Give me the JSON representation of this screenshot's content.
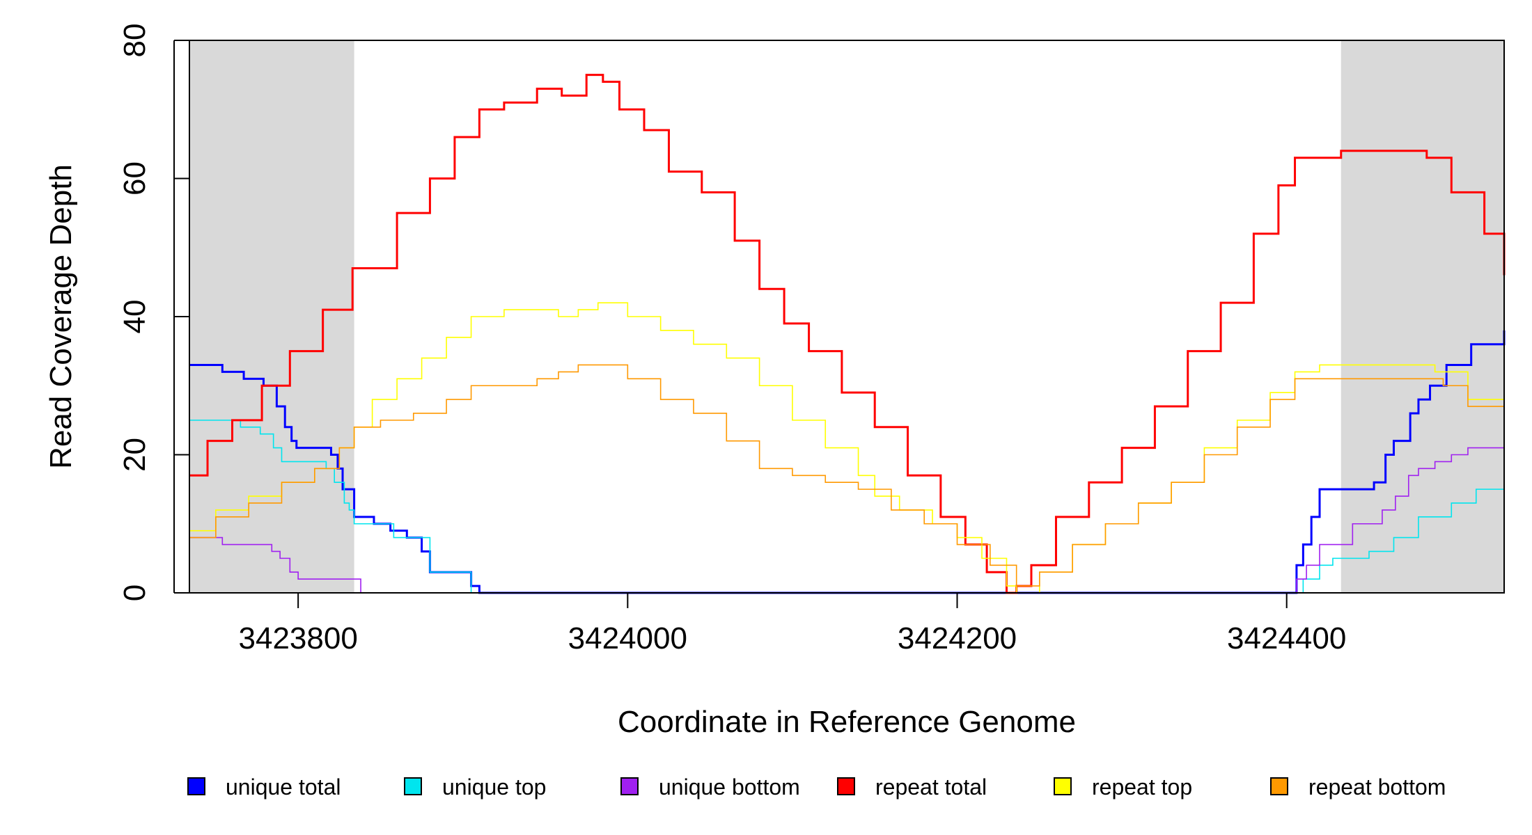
{
  "chart_data": {
    "type": "line",
    "title": "",
    "xlabel": "Coordinate in Reference Genome",
    "ylabel": "Read Coverage Depth",
    "xlim": [
      3423734,
      3424532
    ],
    "ylim": [
      0,
      80
    ],
    "x_ticks": [
      3423800,
      3424000,
      3424200,
      3424400
    ],
    "y_ticks": [
      0,
      20,
      40,
      60,
      80
    ],
    "x_tick_labels": [
      "3423800",
      "3424000",
      "3424200",
      "3424400"
    ],
    "y_tick_labels": [
      "0",
      "20",
      "40",
      "60",
      "80"
    ],
    "shaded_regions": [
      [
        3423734,
        3423834
      ],
      [
        3424433,
        3424532
      ]
    ],
    "shade_color": "#d9d9d9",
    "legend_position": "bottom",
    "series": [
      {
        "name": "unique total",
        "color": "#0000ff",
        "width": 3,
        "x": [
          3423734,
          3423754,
          3423767,
          3423779,
          3423787,
          3423792,
          3423796,
          3423799,
          3423803,
          3423808,
          3423820,
          3423824,
          3423827,
          3423832,
          3423834,
          3423846,
          3423856,
          3423866,
          3423875,
          3423880,
          3423905,
          3423910,
          3424403,
          3424406,
          3424410,
          3424415,
          3424420,
          3424436,
          3424453,
          3424460,
          3424465,
          3424475,
          3424480,
          3424487,
          3424497,
          3424512,
          3424532
        ],
        "y": [
          33,
          32,
          31,
          30,
          27,
          24,
          22,
          21,
          21,
          21,
          20,
          18,
          15,
          15,
          11,
          10,
          9,
          8,
          6,
          3,
          1,
          0,
          0,
          4,
          7,
          11,
          15,
          15,
          16,
          20,
          22,
          26,
          28,
          30,
          33,
          36,
          38
        ]
      },
      {
        "name": "unique top",
        "color": "#00e5ee",
        "width": 1.6,
        "x": [
          3423734,
          3423765,
          3423777,
          3423785,
          3423790,
          3423795,
          3423810,
          3423817,
          3423822,
          3423828,
          3423831,
          3423834,
          3423838,
          3423858,
          3423880,
          3423905,
          3424403,
          3424410,
          3424420,
          3424428,
          3424450,
          3424465,
          3424480,
          3424500,
          3424515,
          3424532
        ],
        "y": [
          25,
          24,
          23,
          21,
          19,
          19,
          19,
          18,
          16,
          13,
          12,
          10,
          10,
          8,
          3,
          0,
          0,
          2,
          4,
          5,
          6,
          8,
          11,
          13,
          15,
          16
        ]
      },
      {
        "name": "unique bottom",
        "color": "#a020f0",
        "width": 1.6,
        "x": [
          3423734,
          3423754,
          3423784,
          3423789,
          3423795,
          3423800,
          3423834,
          3423838,
          3424403,
          3424406,
          3424412,
          3424420,
          3424440,
          3424458,
          3424466,
          3424474,
          3424480,
          3424490,
          3424500,
          3424510,
          3424532
        ],
        "y": [
          8,
          7,
          6,
          5,
          3,
          2,
          2,
          0,
          0,
          2,
          4,
          7,
          10,
          12,
          14,
          17,
          18,
          19,
          20,
          21,
          21
        ]
      },
      {
        "name": "repeat total",
        "color": "#ff0000",
        "width": 3,
        "x": [
          3423734,
          3423745,
          3423760,
          3423778,
          3423795,
          3423815,
          3423833,
          3423860,
          3423880,
          3423895,
          3423910,
          3423925,
          3423945,
          3423960,
          3423975,
          3423985,
          3423995,
          3424010,
          3424025,
          3424045,
          3424065,
          3424080,
          3424095,
          3424110,
          3424130,
          3424150,
          3424170,
          3424190,
          3424205,
          3424218,
          3424230,
          3424236,
          3424245,
          3424260,
          3424280,
          3424300,
          3424320,
          3424340,
          3424360,
          3424380,
          3424395,
          3424405,
          3424420,
          3424433,
          3424450,
          3424470,
          3424485,
          3424500,
          3424520,
          3424532
        ],
        "y": [
          17,
          22,
          25,
          30,
          35,
          41,
          47,
          55,
          60,
          66,
          70,
          71,
          73,
          72,
          75,
          74,
          70,
          67,
          61,
          58,
          51,
          44,
          39,
          35,
          29,
          24,
          17,
          11,
          7,
          3,
          0,
          1,
          4,
          11,
          16,
          21,
          27,
          35,
          42,
          52,
          59,
          63,
          63,
          64,
          64,
          64,
          63,
          58,
          52,
          46
        ]
      },
      {
        "name": "repeat top",
        "color": "#ffff00",
        "width": 1.6,
        "x": [
          3423734,
          3423750,
          3423770,
          3423790,
          3423810,
          3423825,
          3423834,
          3423845,
          3423860,
          3423875,
          3423890,
          3423905,
          3423925,
          3423945,
          3423958,
          3423970,
          3423982,
          3424000,
          3424020,
          3424040,
          3424060,
          3424080,
          3424100,
          3424120,
          3424140,
          3424150,
          3424165,
          3424185,
          3424200,
          3424215,
          3424230,
          3424236,
          3424250,
          3424270,
          3424290,
          3424310,
          3424330,
          3424350,
          3424370,
          3424390,
          3424405,
          3424420,
          3424433,
          3424455,
          3424475,
          3424490,
          3424510,
          3424532
        ],
        "y": [
          9,
          12,
          14,
          16,
          18,
          21,
          24,
          28,
          31,
          34,
          37,
          40,
          41,
          41,
          40,
          41,
          42,
          40,
          38,
          36,
          34,
          30,
          25,
          21,
          17,
          14,
          12,
          10,
          8,
          5,
          1,
          0,
          3,
          7,
          10,
          13,
          16,
          21,
          25,
          29,
          32,
          33,
          33,
          33,
          33,
          32,
          28,
          25
        ]
      },
      {
        "name": "repeat bottom",
        "color": "#ff9900",
        "width": 1.6,
        "x": [
          3423734,
          3423750,
          3423770,
          3423790,
          3423810,
          3423825,
          3423834,
          3423850,
          3423870,
          3423890,
          3423905,
          3423925,
          3423945,
          3423958,
          3423970,
          3423985,
          3424000,
          3424020,
          3424040,
          3424060,
          3424080,
          3424100,
          3424120,
          3424140,
          3424160,
          3424180,
          3424200,
          3424220,
          3424236,
          3424250,
          3424270,
          3424290,
          3424310,
          3424330,
          3424350,
          3424370,
          3424390,
          3424405,
          3424420,
          3424433,
          3424455,
          3424475,
          3424495,
          3424510,
          3424532
        ],
        "y": [
          8,
          11,
          13,
          16,
          18,
          21,
          24,
          25,
          26,
          28,
          30,
          30,
          31,
          32,
          33,
          33,
          31,
          28,
          26,
          22,
          18,
          17,
          16,
          15,
          12,
          10,
          7,
          4,
          1,
          3,
          7,
          10,
          13,
          16,
          20,
          24,
          28,
          31,
          31,
          31,
          31,
          31,
          30,
          27,
          22
        ]
      }
    ]
  }
}
